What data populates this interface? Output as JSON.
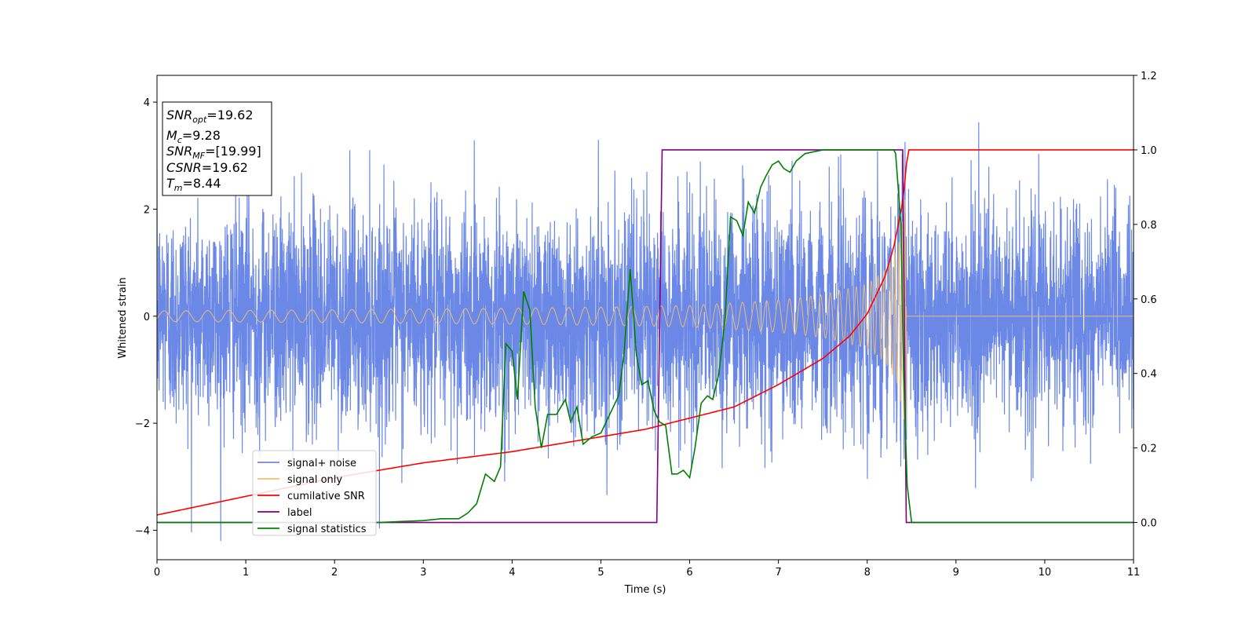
{
  "chart_data": {
    "type": "line",
    "xlabel": "Time (s)",
    "ylabel": "Whitened strain",
    "xlim": [
      0,
      11
    ],
    "ylim": [
      -4.55,
      4.5
    ],
    "y2lim": [
      -0.1,
      1.2
    ],
    "x_ticks": [
      "0",
      "1",
      "2",
      "3",
      "4",
      "5",
      "6",
      "7",
      "8",
      "9",
      "10",
      "11"
    ],
    "y_ticks": [
      "4",
      "2",
      "0",
      "−2",
      "−4"
    ],
    "y2_ticks": [
      "1.2",
      "1.0",
      "0.8",
      "0.6",
      "0.4",
      "0.2",
      "0.0"
    ],
    "annotation": [
      {
        "base": "SNR",
        "sub": "opt",
        "rest": "=19.62"
      },
      {
        "base": "M",
        "sub": "c",
        "rest": "=9.28"
      },
      {
        "base": "SNR",
        "sub": "MF",
        "rest": "=[19.99]"
      },
      {
        "base": "CSNR",
        "sub": "",
        "rest": "=19.62"
      },
      {
        "base": "T",
        "sub": "m",
        "rest": "=8.44"
      }
    ],
    "legend_position": "lower-left",
    "series": [
      {
        "name": "signal+ noise",
        "color": "#6b88e6",
        "axis": "left",
        "noise_std": 1.0,
        "noise_range": [
          -4.2,
          4.1
        ]
      },
      {
        "name": "signal only",
        "color": "#f5c06a",
        "axis": "left",
        "merger_time": 8.44,
        "envelope": {
          "t": [
            0,
            2,
            4,
            5,
            6,
            7,
            7.5,
            8,
            8.2,
            8.35,
            8.42,
            8.44
          ],
          "amp": [
            0.1,
            0.12,
            0.15,
            0.17,
            0.2,
            0.3,
            0.4,
            0.6,
            0.85,
            1.3,
            2.0,
            2.6
          ]
        }
      },
      {
        "name": "cumilative SNR",
        "color": "#ff0000",
        "axis": "right",
        "x": [
          0,
          1,
          2,
          3,
          4,
          5,
          5.5,
          6,
          6.5,
          7,
          7.5,
          7.8,
          8.0,
          8.2,
          8.3,
          8.4,
          8.44,
          8.45,
          11
        ],
        "y": [
          0.02,
          0.07,
          0.12,
          0.16,
          0.19,
          0.23,
          0.25,
          0.28,
          0.31,
          0.37,
          0.44,
          0.5,
          0.56,
          0.66,
          0.74,
          0.86,
          0.95,
          1.0,
          1.0
        ]
      },
      {
        "name": "label",
        "color": "#800080",
        "axis": "right",
        "x": [
          0,
          5.63,
          5.69,
          8.4,
          8.44,
          11
        ],
        "y": [
          0.0,
          0.0,
          1.0,
          1.0,
          0.0,
          0.0
        ]
      },
      {
        "name": "signal statistics",
        "color": "#008000",
        "axis": "right",
        "x": [
          0,
          1,
          2,
          2.5,
          3,
          3.2,
          3.4,
          3.5,
          3.6,
          3.7,
          3.8,
          3.87,
          3.93,
          4.0,
          4.06,
          4.13,
          4.2,
          4.26,
          4.33,
          4.4,
          4.5,
          4.6,
          4.66,
          4.73,
          4.8,
          4.9,
          5.0,
          5.1,
          5.2,
          5.26,
          5.33,
          5.4,
          5.46,
          5.53,
          5.6,
          5.66,
          5.73,
          5.8,
          5.86,
          5.93,
          6.0,
          6.06,
          6.13,
          6.2,
          6.26,
          6.33,
          6.4,
          6.46,
          6.53,
          6.6,
          6.66,
          6.73,
          6.8,
          6.86,
          6.93,
          7.0,
          7.06,
          7.13,
          7.2,
          7.3,
          7.5,
          7.8,
          8.0,
          8.3,
          8.32,
          8.38,
          8.41,
          8.45,
          8.5,
          9,
          10,
          11
        ],
        "y": [
          0.0,
          0.0,
          0.0,
          0.0,
          0.005,
          0.01,
          0.01,
          0.025,
          0.05,
          0.13,
          0.11,
          0.15,
          0.48,
          0.46,
          0.33,
          0.62,
          0.57,
          0.31,
          0.2,
          0.29,
          0.29,
          0.33,
          0.27,
          0.31,
          0.21,
          0.23,
          0.24,
          0.29,
          0.34,
          0.45,
          0.68,
          0.45,
          0.37,
          0.38,
          0.3,
          0.27,
          0.26,
          0.13,
          0.13,
          0.14,
          0.12,
          0.2,
          0.32,
          0.34,
          0.33,
          0.4,
          0.55,
          0.82,
          0.81,
          0.77,
          0.86,
          0.83,
          0.9,
          0.93,
          0.96,
          0.97,
          0.95,
          0.94,
          0.97,
          0.99,
          1.0,
          1.0,
          1.0,
          1.0,
          0.99,
          0.8,
          0.4,
          0.1,
          0.0,
          0.0,
          0.0,
          0.0
        ]
      }
    ]
  }
}
